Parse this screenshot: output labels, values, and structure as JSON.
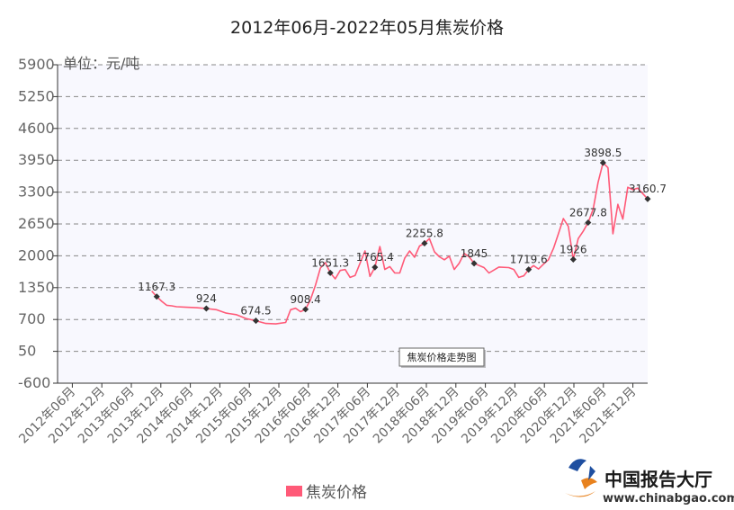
{
  "chart_data": {
    "type": "line",
    "title": "2012年06月-2022年05月焦炭价格",
    "ylabel": "单位：元/吨",
    "ylim": [
      -600,
      5900
    ],
    "yticks": [
      -600,
      50,
      700,
      1350,
      2000,
      2650,
      3300,
      3950,
      4600,
      5250,
      5900
    ],
    "grid": true,
    "xlim": [
      "2012-06",
      "2022-05"
    ],
    "xticks": [
      "2012年06月",
      "2012年12月",
      "2013年06月",
      "2013年12月",
      "2014年06月",
      "2014年12月",
      "2015年06月",
      "2015年12月",
      "2016年06月",
      "2016年12月",
      "2017年06月",
      "2017年12月",
      "2018年06月",
      "2018年12月",
      "2019年06月",
      "2019年12月",
      "2020年06月",
      "2020年12月",
      "2021年06月",
      "2021年12月"
    ],
    "series": [
      {
        "name": "焦炭价格",
        "color": "#ff5a78",
        "points": [
          [
            "2014-01",
            1280
          ],
          [
            "2014-02",
            1167.3
          ],
          [
            "2014-03",
            1070
          ],
          [
            "2014-04",
            990
          ],
          [
            "2014-05",
            980
          ],
          [
            "2014-06",
            960
          ],
          [
            "2014-08",
            950
          ],
          [
            "2014-10",
            940
          ],
          [
            "2014-12",
            924
          ],
          [
            "2015-02",
            900
          ],
          [
            "2015-04",
            830
          ],
          [
            "2015-06",
            800
          ],
          [
            "2015-08",
            720
          ],
          [
            "2015-10",
            674.5
          ],
          [
            "2015-12",
            620
          ],
          [
            "2016-02",
            610
          ],
          [
            "2016-04",
            640
          ],
          [
            "2016-05",
            900
          ],
          [
            "2016-06",
            930
          ],
          [
            "2016-07",
            860
          ],
          [
            "2016-08",
            908.4
          ],
          [
            "2016-09",
            1100
          ],
          [
            "2016-10",
            1400
          ],
          [
            "2016-11",
            1750
          ],
          [
            "2016-12",
            1860
          ],
          [
            "2017-01",
            1651.3
          ],
          [
            "2017-02",
            1530
          ],
          [
            "2017-03",
            1700
          ],
          [
            "2017-04",
            1720
          ],
          [
            "2017-05",
            1560
          ],
          [
            "2017-06",
            1600
          ],
          [
            "2017-07",
            1850
          ],
          [
            "2017-08",
            2100
          ],
          [
            "2017-09",
            1580
          ],
          [
            "2017-10",
            1765.4
          ],
          [
            "2017-11",
            2190
          ],
          [
            "2017-12",
            1720
          ],
          [
            "2018-01",
            1780
          ],
          [
            "2018-02",
            1650
          ],
          [
            "2018-03",
            1650
          ],
          [
            "2018-04",
            1950
          ],
          [
            "2018-05",
            2100
          ],
          [
            "2018-06",
            1970
          ],
          [
            "2018-07",
            2200
          ],
          [
            "2018-08",
            2255.8
          ],
          [
            "2018-09",
            2350
          ],
          [
            "2018-10",
            2080
          ],
          [
            "2018-11",
            1980
          ],
          [
            "2018-12",
            1920
          ],
          [
            "2019-01",
            1990
          ],
          [
            "2019-02",
            1720
          ],
          [
            "2019-03",
            1850
          ],
          [
            "2019-04",
            2050
          ],
          [
            "2019-05",
            1980
          ],
          [
            "2019-06",
            1845
          ],
          [
            "2019-08",
            1760
          ],
          [
            "2019-09",
            1650
          ],
          [
            "2019-11",
            1770
          ],
          [
            "2020-01",
            1760
          ],
          [
            "2020-02",
            1720
          ],
          [
            "2020-03",
            1560
          ],
          [
            "2020-04",
            1590
          ],
          [
            "2020-05",
            1719.6
          ],
          [
            "2020-06",
            1800
          ],
          [
            "2020-07",
            1730
          ],
          [
            "2020-08",
            1830
          ],
          [
            "2020-09",
            1920
          ],
          [
            "2020-10",
            2150
          ],
          [
            "2020-11",
            2450
          ],
          [
            "2020-12",
            2760
          ],
          [
            "2021-01",
            2600
          ],
          [
            "2021-02",
            1926
          ],
          [
            "2021-03",
            2350
          ],
          [
            "2021-04",
            2500
          ],
          [
            "2021-05",
            2677.8
          ],
          [
            "2021-06",
            2950
          ],
          [
            "2021-07",
            3500
          ],
          [
            "2021-08",
            3898.5
          ],
          [
            "2021-09",
            3800
          ],
          [
            "2021-10",
            2450
          ],
          [
            "2021-11",
            3050
          ],
          [
            "2021-12",
            2750
          ],
          [
            "2022-01",
            3400
          ],
          [
            "2022-02",
            3350
          ],
          [
            "2022-03",
            3380
          ],
          [
            "2022-05",
            3160.7
          ]
        ],
        "labeled_points": [
          [
            "2014-02",
            1167.3,
            "1167.3"
          ],
          [
            "2014-12",
            924,
            "924"
          ],
          [
            "2015-10",
            674.5,
            "674.5"
          ],
          [
            "2016-08",
            908.4,
            "908.4"
          ],
          [
            "2017-01",
            1651.3,
            "1651.3"
          ],
          [
            "2017-10",
            1765.4,
            "1765.4"
          ],
          [
            "2018-08",
            2255.8,
            "2255.8"
          ],
          [
            "2019-06",
            1845,
            "1845"
          ],
          [
            "2020-05",
            1719.6,
            "1719.6"
          ],
          [
            "2021-02",
            1926,
            "1926"
          ],
          [
            "2021-05",
            2677.8,
            "2677.8"
          ],
          [
            "2021-08",
            3898.5,
            "3898.5"
          ],
          [
            "2022-05",
            3160.7,
            "3160.7"
          ]
        ]
      }
    ],
    "legend": {
      "position": "bottom-center",
      "entries": [
        "焦炭价格"
      ]
    },
    "tooltip": "焦炭价格走势图"
  },
  "watermark": {
    "name": "中国报告大厅",
    "url": "www.chinabgao.com"
  },
  "colors": {
    "line": "#ff5a78",
    "plot_bg": "#f8f8fe",
    "grid": "#888888",
    "axis": "#333333",
    "marker": "#333333",
    "logo_blue": "#1f4fa0",
    "logo_orange": "#e8821e"
  }
}
